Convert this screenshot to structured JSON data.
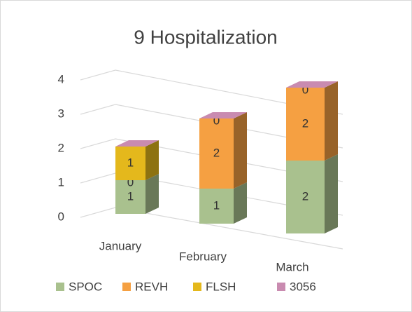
{
  "chart_data": {
    "type": "bar3d_stacked",
    "title": "9 Hospitalization",
    "categories": [
      "January",
      "February",
      "March"
    ],
    "series": [
      {
        "name": "SPOC",
        "color": "#a9c18e",
        "values": [
          1,
          1,
          2
        ]
      },
      {
        "name": "REVH",
        "color": "#f5a042",
        "values": [
          0,
          2,
          2
        ]
      },
      {
        "name": "FLSH",
        "color": "#e4b81c",
        "values": [
          1,
          0,
          0
        ]
      },
      {
        "name": "3056",
        "color": "#c98bb0",
        "values": [
          0,
          0,
          0
        ],
        "labels": false
      }
    ],
    "ylim": [
      0,
      4
    ],
    "yticks": [
      0,
      1,
      2,
      3,
      4
    ],
    "grid": true,
    "legend": "bottom"
  }
}
